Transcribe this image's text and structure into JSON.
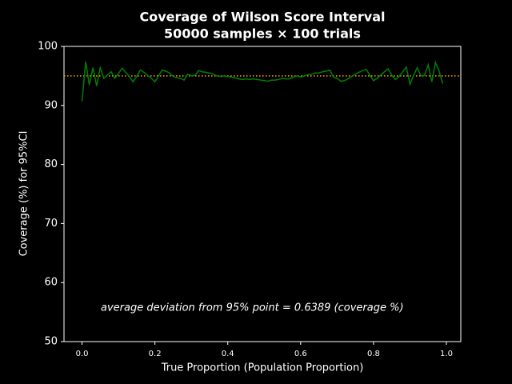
{
  "chart_data": {
    "type": "line",
    "title": "Coverage of Wilson Score Interval",
    "subtitle": "50000 samples × 100 trials",
    "xlabel": "True Proportion (Population Proportion)",
    "ylabel": "Coverage (%) for 95%CI",
    "annotation": "average deviation from 95% point = 0.6389 (coverage %)",
    "x": [
      0.0,
      0.01,
      0.02,
      0.03,
      0.04,
      0.05,
      0.06,
      0.07,
      0.08,
      0.09,
      0.1,
      0.11,
      0.12,
      0.13,
      0.14,
      0.15,
      0.16,
      0.17,
      0.18,
      0.19,
      0.2,
      0.21,
      0.22,
      0.23,
      0.24,
      0.25,
      0.26,
      0.27,
      0.28,
      0.29,
      0.3,
      0.31,
      0.32,
      0.33,
      0.34,
      0.35,
      0.36,
      0.37,
      0.38,
      0.39,
      0.4,
      0.41,
      0.42,
      0.43,
      0.44,
      0.45,
      0.46,
      0.47,
      0.48,
      0.49,
      0.5,
      0.51,
      0.52,
      0.53,
      0.54,
      0.55,
      0.56,
      0.57,
      0.58,
      0.59,
      0.6,
      0.61,
      0.62,
      0.63,
      0.64,
      0.65,
      0.66,
      0.67,
      0.68,
      0.69,
      0.7,
      0.71,
      0.72,
      0.73,
      0.74,
      0.75,
      0.76,
      0.77,
      0.78,
      0.79,
      0.8,
      0.81,
      0.82,
      0.83,
      0.84,
      0.85,
      0.86,
      0.87,
      0.88,
      0.89,
      0.9,
      0.91,
      0.92,
      0.93,
      0.94,
      0.95,
      0.96,
      0.97,
      0.98,
      0.99
    ],
    "series": [
      {
        "color": "green",
        "values": [
          90.7,
          97.4,
          93.5,
          96.4,
          93.3,
          96.4,
          94.6,
          95.2,
          95.7,
          94.6,
          95.4,
          96.3,
          95.6,
          94.9,
          94.0,
          94.9,
          96.0,
          95.6,
          95.1,
          94.6,
          94.0,
          95.0,
          96.0,
          95.8,
          95.5,
          94.9,
          94.7,
          94.6,
          94.3,
          95.3,
          95.0,
          95.1,
          95.9,
          95.7,
          95.6,
          95.5,
          95.3,
          95.0,
          94.9,
          95.0,
          94.9,
          94.8,
          94.7,
          94.5,
          94.4,
          94.5,
          94.4,
          94.5,
          94.4,
          94.3,
          94.2,
          94.1,
          94.3,
          94.3,
          94.4,
          94.6,
          94.5,
          94.5,
          94.8,
          95.0,
          94.8,
          95.0,
          95.2,
          95.3,
          95.5,
          95.5,
          95.7,
          95.8,
          96.0,
          94.8,
          94.6,
          94.1,
          94.2,
          94.5,
          94.9,
          95.3,
          95.6,
          95.9,
          96.1,
          95.1,
          94.2,
          94.6,
          95.2,
          95.7,
          96.2,
          95.1,
          94.4,
          94.9,
          95.7,
          96.5,
          93.6,
          95.1,
          96.4,
          95.0,
          95.1,
          96.9,
          94.0,
          97.3,
          95.8,
          93.7
        ]
      }
    ],
    "hline": {
      "value": 95,
      "color": "orange"
    },
    "xlim": [
      -0.0495,
      1.0395
    ],
    "ylim": [
      50,
      100
    ],
    "xticks": [
      {
        "value": 0,
        "label": "0.0"
      },
      0.2,
      0.4,
      0.6,
      0.8,
      {
        "value": 1,
        "label": "1.0"
      }
    ],
    "yticks": [
      50,
      60,
      70,
      80,
      90,
      100
    ]
  }
}
